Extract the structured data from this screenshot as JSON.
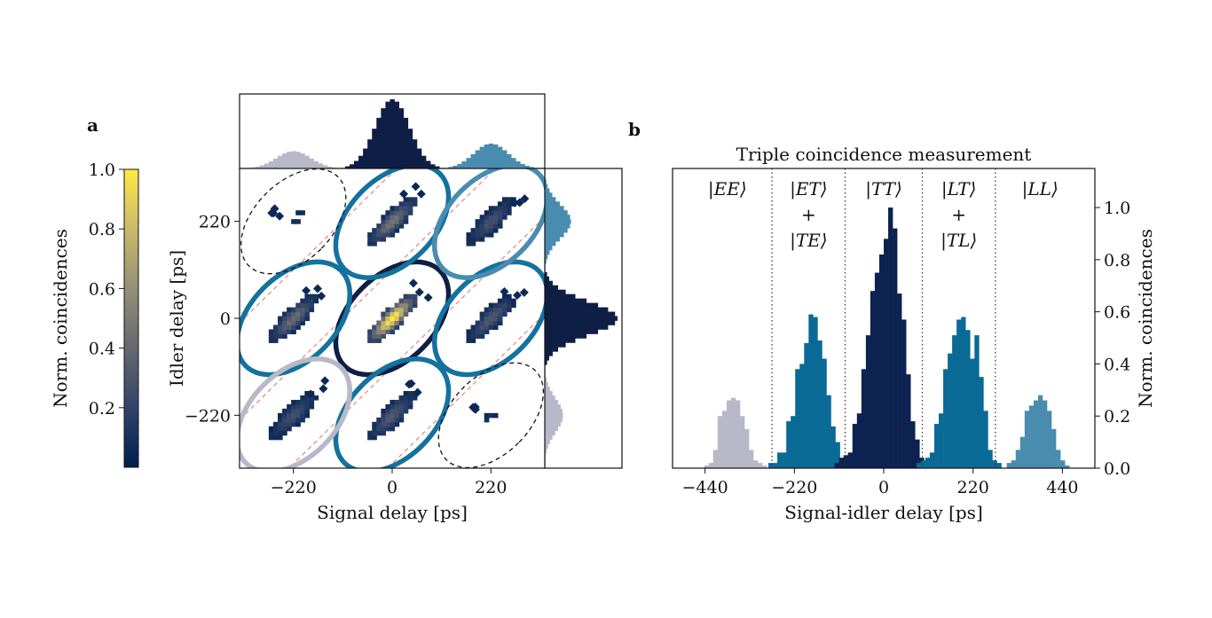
{
  "panel_a": {
    "label": "a",
    "colorbar": {
      "label": "Norm. coincidences",
      "ticks": [
        "0.2",
        "0.4",
        "0.6",
        "0.8",
        "1.0"
      ],
      "tick_values": [
        0.2,
        0.4,
        0.6,
        0.8,
        1.0
      ],
      "range": [
        0.0,
        1.0
      ],
      "colormap": [
        "#00204d",
        "#31446b",
        "#666970",
        "#958f78",
        "#cbb969",
        "#ffe945"
      ]
    }
  },
  "panel_b": {
    "label": "b"
  },
  "chart_data": [
    {
      "type": "heatmap",
      "xlabel": "Signal delay [ps]",
      "ylabel": "Idler delay [ps]",
      "xlim": [
        -340,
        340
      ],
      "ylim": [
        -340,
        340
      ],
      "xticks": [
        -220,
        0,
        220
      ],
      "yticks": [
        -220,
        0,
        220
      ],
      "xtick_labels": [
        "−220",
        "0",
        "220"
      ],
      "ytick_labels": [
        "−220",
        "0",
        "220"
      ],
      "clusters": [
        {
          "x": 0,
          "y": 0,
          "peak": 1.0,
          "ring_color": "#0f1e44",
          "ring": "solid"
        },
        {
          "x": -220,
          "y": 0,
          "peak": 0.4,
          "ring_color": "#13729e",
          "ring": "solid"
        },
        {
          "x": 220,
          "y": 0,
          "peak": 0.3,
          "ring_color": "#13729e",
          "ring": "solid"
        },
        {
          "x": 0,
          "y": 220,
          "peak": 0.45,
          "ring_color": "#13729e",
          "ring": "solid"
        },
        {
          "x": 0,
          "y": -220,
          "peak": 0.3,
          "ring_color": "#13729e",
          "ring": "solid"
        },
        {
          "x": 220,
          "y": 220,
          "peak": 0.25,
          "ring_color": "#4a8cb0",
          "ring": "solid"
        },
        {
          "x": -220,
          "y": -220,
          "peak": 0.25,
          "ring_color": "#b8b8c8",
          "ring": "solid"
        },
        {
          "x": -220,
          "y": 220,
          "peak": 0.05,
          "ring_color": "#111111",
          "ring": "dashed"
        },
        {
          "x": 220,
          "y": -220,
          "peak": 0.05,
          "ring_color": "#111111",
          "ring": "dashed"
        }
      ],
      "diagonal_guides_color": "#f08080",
      "marginal_top": {
        "peaks": [
          {
            "center": -220,
            "height": 0.25,
            "color": "#b8b8c8"
          },
          {
            "center": 0,
            "height": 1.0,
            "color": "#0f1e44"
          },
          {
            "center": 220,
            "height": 0.36,
            "color": "#4a8cb0"
          }
        ]
      },
      "marginal_right": {
        "peaks": [
          {
            "center": 220,
            "height": 0.36,
            "color": "#4a8cb0"
          },
          {
            "center": 0,
            "height": 1.0,
            "color": "#0f1e44"
          },
          {
            "center": -220,
            "height": 0.25,
            "color": "#b8b8c8"
          }
        ]
      }
    },
    {
      "type": "bar",
      "title": "Triple coincidence measurement",
      "xlabel": "Signal-idler delay [ps]",
      "ylabel": "Norm. coincidences",
      "xlim": [
        -520,
        520
      ],
      "ylim": [
        0,
        1.15
      ],
      "xticks": [
        -440,
        -220,
        0,
        220,
        440
      ],
      "xtick_labels": [
        "−440",
        "−220",
        "0",
        "220",
        "440"
      ],
      "yticks": [
        0.0,
        0.2,
        0.4,
        0.6,
        0.8,
        1.0
      ],
      "ytick_labels": [
        "0.0",
        "0.2",
        "0.4",
        "0.6",
        "0.8",
        "1.0"
      ],
      "bin_width": 11,
      "dividers": [
        -275,
        -95,
        95,
        275
      ],
      "region_labels": [
        {
          "x": -385,
          "lines": [
            "|EE⟩"
          ]
        },
        {
          "x": -185,
          "lines": [
            "|ET⟩",
            "+",
            "|TE⟩"
          ]
        },
        {
          "x": 0,
          "lines": [
            "|TT⟩"
          ]
        },
        {
          "x": 185,
          "lines": [
            "|LT⟩",
            "+",
            "|TL⟩"
          ]
        },
        {
          "x": 385,
          "lines": [
            "|LL⟩"
          ]
        }
      ],
      "series": [
        {
          "center": -365,
          "color": "#b8b8c8",
          "values": [
            0.01,
            0.02,
            0.07,
            0.2,
            0.22,
            0.26,
            0.27,
            0.26,
            0.2,
            0.15,
            0.07,
            0.03,
            0.02,
            0.01
          ]
        },
        {
          "center": -185,
          "color": "#0a6a96",
          "values": [
            0.02,
            0.02,
            0.06,
            0.06,
            0.18,
            0.2,
            0.38,
            0.4,
            0.48,
            0.59,
            0.58,
            0.49,
            0.42,
            0.28,
            0.16,
            0.1,
            0.02,
            0.02
          ]
        },
        {
          "center": 0,
          "color": "#0c2250",
          "values": [
            0.02,
            0.04,
            0.05,
            0.06,
            0.17,
            0.21,
            0.38,
            0.51,
            0.68,
            0.75,
            0.82,
            0.88,
            1.0,
            0.92,
            0.67,
            0.57,
            0.36,
            0.18,
            0.11,
            0.04,
            0.02,
            0.01
          ]
        },
        {
          "center": 185,
          "color": "#0a6a96",
          "values": [
            0.02,
            0.03,
            0.04,
            0.06,
            0.17,
            0.21,
            0.38,
            0.44,
            0.51,
            0.57,
            0.58,
            0.53,
            0.42,
            0.51,
            0.35,
            0.22,
            0.07,
            0.03,
            0.02
          ]
        },
        {
          "center": 380,
          "color": "#4a8cb0",
          "values": [
            0.02,
            0.03,
            0.07,
            0.12,
            0.22,
            0.24,
            0.26,
            0.28,
            0.26,
            0.22,
            0.15,
            0.07,
            0.03,
            0.01
          ]
        }
      ]
    }
  ]
}
